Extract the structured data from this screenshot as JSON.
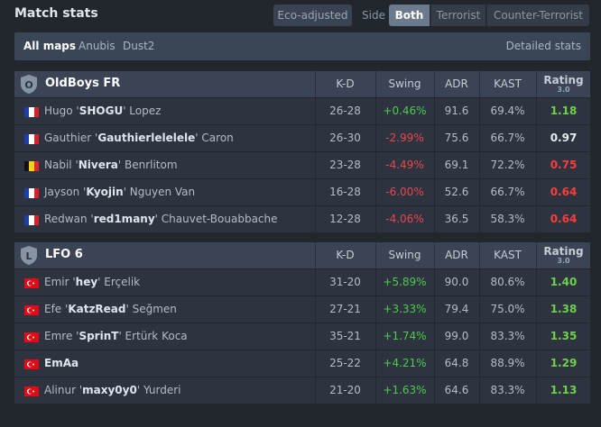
{
  "header": {
    "title": "Match stats",
    "eco_label": "Eco-adjusted",
    "side_label": "Side",
    "sides": [
      "Both",
      "Terrorist",
      "Counter-Terrorist"
    ]
  },
  "maps": {
    "items": [
      "All maps",
      "Anubis",
      "Dust2"
    ],
    "detailed": "Detailed stats"
  },
  "columns": {
    "kd": "K-D",
    "swing": "Swing",
    "adr": "ADR",
    "kast": "KAST",
    "rating": "Rating",
    "rating_sub": "3.0"
  },
  "teams": [
    {
      "name": "OldBoys FR",
      "logo_letter": "O",
      "players": [
        {
          "first": "Hugo '",
          "nick": "SHOGU",
          "last": "' Lopez",
          "flag": "fr",
          "kd": "26-28",
          "swing": "+0.46%",
          "adr": "91.6",
          "kast": "69.4%",
          "rating": "1.18"
        },
        {
          "first": "Gauthier '",
          "nick": "Gauthierlelelele",
          "last": "' Caron",
          "flag": "fr",
          "kd": "26-30",
          "swing": "-2.99%",
          "adr": "75.6",
          "kast": "66.7%",
          "rating": "0.97"
        },
        {
          "first": "Nabil '",
          "nick": "Nivera",
          "last": "' Benrlitom",
          "flag": "be",
          "kd": "23-28",
          "swing": "-4.49%",
          "adr": "69.1",
          "kast": "72.2%",
          "rating": "0.75"
        },
        {
          "first": "Jayson '",
          "nick": "Kyojin",
          "last": "' Nguyen Van",
          "flag": "fr",
          "kd": "16-28",
          "swing": "-6.00%",
          "adr": "52.6",
          "kast": "66.7%",
          "rating": "0.64"
        },
        {
          "first": "Redwan '",
          "nick": "red1many",
          "last": "' Chauvet-Bouabbache",
          "flag": "fr",
          "kd": "12-28",
          "swing": "-4.06%",
          "adr": "36.5",
          "kast": "58.3%",
          "rating": "0.64"
        }
      ]
    },
    {
      "name": "LFO 6",
      "logo_letter": "L",
      "players": [
        {
          "first": "Emir '",
          "nick": "hey",
          "last": "' Erçelik",
          "flag": "tr",
          "kd": "31-20",
          "swing": "+5.89%",
          "adr": "90.0",
          "kast": "80.6%",
          "rating": "1.40"
        },
        {
          "first": "Efe '",
          "nick": "KatzRead",
          "last": "' Seğmen",
          "flag": "tr",
          "kd": "27-21",
          "swing": "+3.33%",
          "adr": "79.4",
          "kast": "75.0%",
          "rating": "1.38"
        },
        {
          "first": "Emre '",
          "nick": "SprinT",
          "last": "' Ertürk Koca",
          "flag": "tr",
          "kd": "35-21",
          "swing": "+1.74%",
          "adr": "99.0",
          "kast": "83.3%",
          "rating": "1.35"
        },
        {
          "first": "",
          "nick": "EmAa",
          "last": "",
          "flag": "tr",
          "kd": "25-22",
          "swing": "+4.21%",
          "adr": "64.8",
          "kast": "88.9%",
          "rating": "1.29"
        },
        {
          "first": "Alinur '",
          "nick": "maxy0y0",
          "last": "' Yurderi",
          "flag": "tr",
          "kd": "21-20",
          "swing": "+1.63%",
          "adr": "64.6",
          "kast": "83.3%",
          "rating": "1.13"
        }
      ]
    }
  ],
  "colors": {
    "positive": "#4ec94e",
    "negative": "#e8464d",
    "rating_good": "#6fd14a",
    "rating_bad": "#ff3c3c",
    "rating_neutral": "#e6e9ed"
  }
}
